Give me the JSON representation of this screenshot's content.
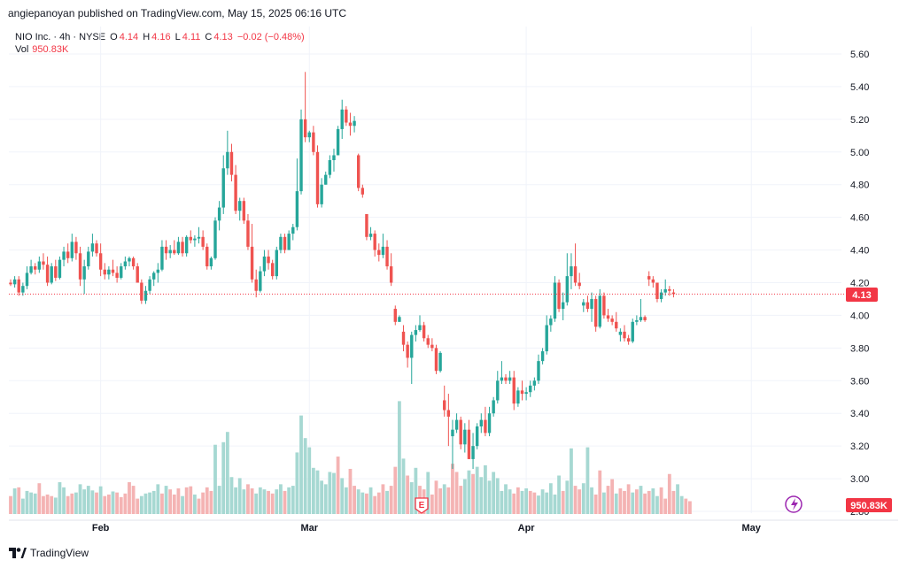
{
  "header": {
    "publish_line": "angiepanoyan published on TradingView.com, May 15, 2025 06:16 UTC"
  },
  "legend": {
    "symbol": "NIO Inc. · 4h · NYSE",
    "open_label": "O",
    "open": "4.14",
    "high_label": "H",
    "high": "4.16",
    "low_label": "L",
    "low": "4.11",
    "close_label": "C",
    "close": "4.13",
    "change": "−0.02 (−0.48%)",
    "vol_label": "Vol",
    "vol_value": "950.83K"
  },
  "price_badge": "4.13",
  "volume_badge": "950.83K",
  "earnings_marker": "E",
  "footer": {
    "brand": "TradingView"
  },
  "colors": {
    "up": "#26a69a",
    "down": "#ef5350",
    "up_vol": "#a6d8d2",
    "down_vol": "#f4b3b3",
    "grid": "#f0f3fa",
    "last_line": "#f23645"
  },
  "chart_data": {
    "type": "candlestick",
    "title": "NIO Inc. · 4h · NYSE",
    "y_ticks": [
      "2.80",
      "3.00",
      "3.20",
      "3.40",
      "3.60",
      "3.80",
      "4.00",
      "4.20",
      "4.40",
      "4.60",
      "4.80",
      "5.00",
      "5.20",
      "5.40",
      "5.60"
    ],
    "ylim": [
      2.8,
      5.72
    ],
    "x_ticks": [
      {
        "label": "Feb",
        "index": 22
      },
      {
        "label": "Mar",
        "index": 73
      },
      {
        "label": "Apr",
        "index": 126
      },
      {
        "label": "May",
        "index": 181
      }
    ],
    "last_price": 4.13,
    "candles": [
      [
        4.2,
        4.22,
        4.18,
        4.19
      ],
      [
        4.19,
        4.24,
        4.17,
        4.22
      ],
      [
        4.22,
        4.24,
        4.12,
        4.14
      ],
      [
        4.14,
        4.2,
        4.12,
        4.18
      ],
      [
        4.18,
        4.3,
        4.16,
        4.26
      ],
      [
        4.26,
        4.34,
        4.25,
        4.3
      ],
      [
        4.3,
        4.32,
        4.25,
        4.28
      ],
      [
        4.28,
        4.36,
        4.26,
        4.33
      ],
      [
        4.33,
        4.38,
        4.28,
        4.31
      ],
      [
        4.31,
        4.36,
        4.18,
        4.2
      ],
      [
        4.2,
        4.32,
        4.19,
        4.3
      ],
      [
        4.3,
        4.34,
        4.21,
        4.23
      ],
      [
        4.23,
        4.36,
        4.22,
        4.34
      ],
      [
        4.34,
        4.42,
        4.3,
        4.39
      ],
      [
        4.39,
        4.44,
        4.32,
        4.35
      ],
      [
        4.35,
        4.5,
        4.33,
        4.45
      ],
      [
        4.45,
        4.48,
        4.34,
        4.38
      ],
      [
        4.38,
        4.42,
        4.18,
        4.22
      ],
      [
        4.22,
        4.34,
        4.13,
        4.3
      ],
      [
        4.3,
        4.42,
        4.28,
        4.39
      ],
      [
        4.39,
        4.5,
        4.36,
        4.44
      ],
      [
        4.44,
        4.46,
        4.36,
        4.38
      ],
      [
        4.38,
        4.44,
        4.24,
        4.28
      ],
      [
        4.28,
        4.32,
        4.22,
        4.25
      ],
      [
        4.25,
        4.3,
        4.22,
        4.28
      ],
      [
        4.28,
        4.34,
        4.24,
        4.26
      ],
      [
        4.26,
        4.3,
        4.2,
        4.23
      ],
      [
        4.23,
        4.32,
        4.22,
        4.3
      ],
      [
        4.3,
        4.36,
        4.28,
        4.33
      ],
      [
        4.33,
        4.36,
        4.3,
        4.35
      ],
      [
        4.35,
        4.36,
        4.28,
        4.3
      ],
      [
        4.3,
        4.32,
        4.2,
        4.2
      ],
      [
        4.2,
        4.22,
        4.07,
        4.09
      ],
      [
        4.09,
        4.18,
        4.07,
        4.15
      ],
      [
        4.15,
        4.24,
        4.13,
        4.22
      ],
      [
        4.22,
        4.27,
        4.18,
        4.26
      ],
      [
        4.26,
        4.32,
        4.2,
        4.28
      ],
      [
        4.28,
        4.46,
        4.27,
        4.42
      ],
      [
        4.42,
        4.46,
        4.34,
        4.38
      ],
      [
        4.38,
        4.43,
        4.35,
        4.4
      ],
      [
        4.4,
        4.46,
        4.37,
        4.38
      ],
      [
        4.38,
        4.48,
        4.37,
        4.45
      ],
      [
        4.45,
        4.48,
        4.36,
        4.38
      ],
      [
        4.38,
        4.49,
        4.36,
        4.48
      ],
      [
        4.48,
        4.52,
        4.44,
        4.46
      ],
      [
        4.46,
        4.49,
        4.42,
        4.47
      ],
      [
        4.47,
        4.54,
        4.44,
        4.48
      ],
      [
        4.48,
        4.52,
        4.4,
        4.42
      ],
      [
        4.42,
        4.44,
        4.28,
        4.3
      ],
      [
        4.3,
        4.36,
        4.28,
        4.35
      ],
      [
        4.35,
        4.6,
        4.34,
        4.58
      ],
      [
        4.58,
        4.7,
        4.52,
        4.66
      ],
      [
        4.66,
        4.98,
        4.62,
        4.9
      ],
      [
        4.9,
        5.13,
        4.86,
        5.0
      ],
      [
        5.0,
        5.05,
        4.82,
        4.86
      ],
      [
        4.86,
        4.92,
        4.62,
        4.64
      ],
      [
        4.64,
        4.72,
        4.58,
        4.7
      ],
      [
        4.7,
        4.72,
        4.56,
        4.58
      ],
      [
        4.58,
        4.62,
        4.4,
        4.42
      ],
      [
        4.42,
        4.56,
        4.2,
        4.22
      ],
      [
        4.22,
        4.28,
        4.11,
        4.15
      ],
      [
        4.15,
        4.3,
        4.14,
        4.27
      ],
      [
        4.27,
        4.4,
        4.24,
        4.36
      ],
      [
        4.36,
        4.4,
        4.28,
        4.32
      ],
      [
        4.32,
        4.34,
        4.22,
        4.24
      ],
      [
        4.24,
        4.42,
        4.22,
        4.4
      ],
      [
        4.4,
        4.5,
        4.38,
        4.48
      ],
      [
        4.48,
        4.5,
        4.38,
        4.4
      ],
      [
        4.4,
        4.52,
        4.4,
        4.5
      ],
      [
        4.5,
        4.56,
        4.46,
        4.54
      ],
      [
        4.54,
        4.96,
        4.52,
        4.76
      ],
      [
        4.76,
        5.26,
        4.74,
        5.2
      ],
      [
        5.2,
        5.49,
        5.06,
        5.09
      ],
      [
        5.09,
        5.13,
        5.06,
        5.12
      ],
      [
        5.12,
        5.16,
        4.98,
        5.0
      ],
      [
        5.0,
        5.04,
        4.66,
        4.68
      ],
      [
        4.68,
        4.84,
        4.66,
        4.8
      ],
      [
        4.8,
        4.88,
        4.8,
        4.86
      ],
      [
        4.86,
        4.98,
        4.84,
        4.95
      ],
      [
        4.95,
        5.02,
        4.88,
        4.98
      ],
      [
        4.98,
        5.16,
        4.98,
        5.14
      ],
      [
        5.14,
        5.32,
        5.08,
        5.26
      ],
      [
        5.26,
        5.28,
        5.16,
        5.18
      ],
      [
        5.18,
        5.24,
        5.1,
        5.16
      ],
      [
        5.16,
        5.22,
        5.12,
        5.19
      ],
      [
        4.98,
        4.99,
        4.76,
        4.78
      ],
      [
        4.78,
        4.8,
        4.72,
        4.74
      ],
      [
        4.62,
        4.62,
        4.46,
        4.48
      ],
      [
        4.48,
        4.54,
        4.46,
        4.5
      ],
      [
        4.5,
        4.52,
        4.36,
        4.4
      ],
      [
        4.4,
        4.44,
        4.33,
        4.37
      ],
      [
        4.37,
        4.5,
        4.35,
        4.42
      ],
      [
        4.42,
        4.46,
        4.28,
        4.3
      ],
      [
        4.3,
        4.38,
        4.18,
        4.2
      ],
      [
        4.04,
        4.06,
        3.94,
        3.96
      ],
      [
        3.96,
        4.0,
        3.96,
        3.99
      ],
      [
        3.9,
        3.94,
        3.78,
        3.82
      ],
      [
        3.82,
        3.84,
        3.68,
        3.74
      ],
      [
        3.74,
        3.9,
        3.58,
        3.88
      ],
      [
        3.88,
        3.94,
        3.84,
        3.91
      ],
      [
        3.91,
        4.0,
        3.9,
        3.94
      ],
      [
        3.94,
        3.96,
        3.84,
        3.86
      ],
      [
        3.86,
        3.88,
        3.8,
        3.82
      ],
      [
        3.82,
        3.86,
        3.78,
        3.8
      ],
      [
        3.8,
        3.82,
        3.64,
        3.66
      ],
      [
        3.66,
        3.78,
        3.65,
        3.77
      ],
      [
        3.48,
        3.57,
        3.38,
        3.42
      ],
      [
        3.42,
        3.52,
        3.2,
        3.38
      ],
      [
        3.26,
        3.36,
        3.06,
        3.3
      ],
      [
        3.3,
        3.4,
        3.28,
        3.36
      ],
      [
        3.36,
        3.38,
        3.18,
        3.21
      ],
      [
        3.21,
        3.34,
        3.16,
        3.3
      ],
      [
        3.3,
        3.36,
        3.12,
        3.12
      ],
      [
        3.12,
        3.28,
        3.06,
        3.2
      ],
      [
        3.2,
        3.34,
        3.18,
        3.32
      ],
      [
        3.32,
        3.4,
        3.28,
        3.36
      ],
      [
        3.36,
        3.44,
        3.26,
        3.28
      ],
      [
        3.28,
        3.44,
        3.26,
        3.4
      ],
      [
        3.4,
        3.5,
        3.38,
        3.48
      ],
      [
        3.48,
        3.66,
        3.46,
        3.6
      ],
      [
        3.6,
        3.72,
        3.58,
        3.62
      ],
      [
        3.62,
        3.64,
        3.58,
        3.6
      ],
      [
        3.6,
        3.66,
        3.58,
        3.62
      ],
      [
        3.62,
        3.66,
        3.42,
        3.46
      ],
      [
        3.46,
        3.56,
        3.44,
        3.54
      ],
      [
        3.54,
        3.6,
        3.48,
        3.52
      ],
      [
        3.52,
        3.56,
        3.48,
        3.53
      ],
      [
        3.53,
        3.6,
        3.5,
        3.57
      ],
      [
        3.57,
        3.62,
        3.54,
        3.6
      ],
      [
        3.6,
        3.76,
        3.58,
        3.72
      ],
      [
        3.72,
        3.8,
        3.7,
        3.78
      ],
      [
        3.78,
        4.0,
        3.76,
        3.94
      ],
      [
        3.94,
        4.0,
        3.9,
        3.98
      ],
      [
        3.98,
        4.24,
        3.96,
        4.2
      ],
      [
        4.2,
        4.22,
        4.02,
        4.04
      ],
      [
        4.04,
        4.14,
        3.97,
        4.08
      ],
      [
        4.08,
        4.38,
        4.06,
        4.24
      ],
      [
        4.24,
        4.38,
        4.16,
        4.3
      ],
      [
        4.3,
        4.44,
        4.18,
        4.2
      ],
      [
        4.2,
        4.26,
        4.16,
        4.18
      ],
      [
        4.06,
        4.1,
        4.02,
        4.08
      ],
      [
        4.08,
        4.12,
        4.02,
        4.04
      ],
      [
        4.04,
        4.14,
        3.96,
        4.1
      ],
      [
        4.1,
        4.12,
        3.9,
        3.93
      ],
      [
        3.93,
        4.16,
        3.92,
        4.12
      ],
      [
        4.12,
        4.14,
        3.98,
        4.0
      ],
      [
        4.0,
        4.04,
        3.96,
        3.98
      ],
      [
        3.98,
        4.0,
        3.94,
        3.96
      ],
      [
        3.96,
        4.02,
        3.9,
        3.92
      ],
      [
        3.88,
        3.92,
        3.84,
        3.9
      ],
      [
        3.9,
        3.94,
        3.84,
        3.86
      ],
      [
        3.86,
        3.88,
        3.82,
        3.84
      ],
      [
        3.84,
        3.98,
        3.83,
        3.96
      ],
      [
        3.96,
        4.0,
        3.94,
        3.97
      ],
      [
        3.97,
        4.1,
        3.96,
        3.99
      ],
      [
        3.99,
        4.0,
        3.96,
        3.97
      ],
      [
        4.24,
        4.27,
        4.18,
        4.22
      ],
      [
        4.22,
        4.24,
        4.17,
        4.2
      ],
      [
        4.2,
        4.2,
        4.08,
        4.1
      ],
      [
        4.1,
        4.16,
        4.08,
        4.14
      ],
      [
        4.14,
        4.22,
        4.12,
        4.16
      ],
      [
        4.16,
        4.18,
        4.12,
        4.15
      ],
      [
        4.14,
        4.16,
        4.11,
        4.13
      ]
    ],
    "volumes": [
      [
        0.35,
        0
      ],
      [
        0.5,
        1
      ],
      [
        0.52,
        0
      ],
      [
        0.3,
        1
      ],
      [
        0.45,
        1
      ],
      [
        0.42,
        1
      ],
      [
        0.4,
        1
      ],
      [
        0.6,
        0
      ],
      [
        0.35,
        0
      ],
      [
        0.38,
        0
      ],
      [
        0.35,
        0
      ],
      [
        0.32,
        1
      ],
      [
        0.62,
        1
      ],
      [
        0.52,
        1
      ],
      [
        0.35,
        0
      ],
      [
        0.4,
        0
      ],
      [
        0.42,
        1
      ],
      [
        0.58,
        1
      ],
      [
        0.48,
        1
      ],
      [
        0.55,
        1
      ],
      [
        0.46,
        1
      ],
      [
        0.42,
        0
      ],
      [
        0.54,
        1
      ],
      [
        0.35,
        0
      ],
      [
        0.38,
        0
      ],
      [
        0.44,
        1
      ],
      [
        0.42,
        0
      ],
      [
        0.33,
        0
      ],
      [
        0.4,
        0
      ],
      [
        0.62,
        0
      ],
      [
        0.55,
        0
      ],
      [
        0.3,
        0
      ],
      [
        0.35,
        1
      ],
      [
        0.4,
        1
      ],
      [
        0.42,
        1
      ],
      [
        0.45,
        1
      ],
      [
        0.58,
        1
      ],
      [
        0.4,
        0
      ],
      [
        0.55,
        1
      ],
      [
        0.48,
        0
      ],
      [
        0.38,
        0
      ],
      [
        0.5,
        0
      ],
      [
        0.35,
        1
      ],
      [
        0.52,
        0
      ],
      [
        0.54,
        0
      ],
      [
        0.38,
        1
      ],
      [
        0.3,
        0
      ],
      [
        0.42,
        0
      ],
      [
        0.52,
        0
      ],
      [
        0.45,
        0
      ],
      [
        1.35,
        1
      ],
      [
        0.55,
        1
      ],
      [
        1.4,
        1
      ],
      [
        1.6,
        1
      ],
      [
        0.72,
        1
      ],
      [
        0.52,
        1
      ],
      [
        0.7,
        1
      ],
      [
        0.48,
        1
      ],
      [
        0.58,
        0
      ],
      [
        0.5,
        0
      ],
      [
        0.4,
        1
      ],
      [
        0.52,
        1
      ],
      [
        0.48,
        1
      ],
      [
        0.45,
        0
      ],
      [
        0.4,
        0
      ],
      [
        0.48,
        1
      ],
      [
        0.58,
        1
      ],
      [
        0.45,
        0
      ],
      [
        0.52,
        1
      ],
      [
        0.55,
        1
      ],
      [
        1.2,
        1
      ],
      [
        1.92,
        1
      ],
      [
        1.48,
        1
      ],
      [
        1.3,
        1
      ],
      [
        0.9,
        1
      ],
      [
        0.85,
        1
      ],
      [
        0.65,
        1
      ],
      [
        0.58,
        1
      ],
      [
        0.82,
        1
      ],
      [
        0.8,
        1
      ],
      [
        1.12,
        0
      ],
      [
        0.7,
        1
      ],
      [
        0.52,
        1
      ],
      [
        0.88,
        0
      ],
      [
        0.55,
        0
      ],
      [
        0.48,
        1
      ],
      [
        0.42,
        1
      ],
      [
        0.4,
        0
      ],
      [
        0.52,
        1
      ],
      [
        0.35,
        0
      ],
      [
        0.42,
        0
      ],
      [
        0.58,
        0
      ],
      [
        0.45,
        1
      ],
      [
        0.55,
        0
      ],
      [
        0.92,
        0
      ],
      [
        2.2,
        1
      ],
      [
        1.08,
        1
      ],
      [
        0.75,
        0
      ],
      [
        0.62,
        1
      ],
      [
        0.9,
        1
      ],
      [
        0.55,
        0
      ],
      [
        0.48,
        0
      ],
      [
        0.82,
        1
      ],
      [
        0.38,
        0
      ],
      [
        0.65,
        0
      ],
      [
        0.5,
        0
      ],
      [
        0.58,
        1
      ],
      [
        0.52,
        0
      ],
      [
        0.98,
        0
      ],
      [
        0.82,
        0
      ],
      [
        0.55,
        0
      ],
      [
        0.68,
        1
      ],
      [
        0.85,
        1
      ],
      [
        0.78,
        0
      ],
      [
        0.92,
        1
      ],
      [
        0.72,
        1
      ],
      [
        0.95,
        1
      ],
      [
        0.65,
        1
      ],
      [
        0.82,
        1
      ],
      [
        0.7,
        1
      ],
      [
        0.45,
        1
      ],
      [
        0.58,
        1
      ],
      [
        0.48,
        1
      ],
      [
        0.4,
        0
      ],
      [
        0.52,
        0
      ],
      [
        0.45,
        1
      ],
      [
        0.5,
        1
      ],
      [
        0.45,
        0
      ],
      [
        0.42,
        0
      ],
      [
        0.36,
        1
      ],
      [
        0.48,
        1
      ],
      [
        0.42,
        1
      ],
      [
        0.6,
        1
      ],
      [
        0.38,
        1
      ],
      [
        0.75,
        1
      ],
      [
        0.45,
        0
      ],
      [
        0.65,
        1
      ],
      [
        1.28,
        1
      ],
      [
        0.55,
        0
      ],
      [
        0.48,
        0
      ],
      [
        0.6,
        1
      ],
      [
        1.3,
        1
      ],
      [
        0.52,
        1
      ],
      [
        0.38,
        0
      ],
      [
        0.85,
        0
      ],
      [
        0.42,
        1
      ],
      [
        0.55,
        0
      ],
      [
        0.68,
        0
      ],
      [
        0.4,
        1
      ],
      [
        0.5,
        0
      ],
      [
        0.45,
        0
      ],
      [
        0.58,
        0
      ],
      [
        0.42,
        1
      ],
      [
        0.48,
        0
      ],
      [
        0.55,
        1
      ],
      [
        0.4,
        0
      ],
      [
        0.45,
        0
      ],
      [
        0.5,
        1
      ],
      [
        0.35,
        1
      ],
      [
        0.52,
        0
      ],
      [
        0.3,
        0
      ],
      [
        0.78,
        0
      ],
      [
        0.45,
        0
      ],
      [
        0.58,
        1
      ],
      [
        0.35,
        1
      ],
      [
        0.3,
        0
      ],
      [
        0.25,
        0
      ]
    ]
  }
}
